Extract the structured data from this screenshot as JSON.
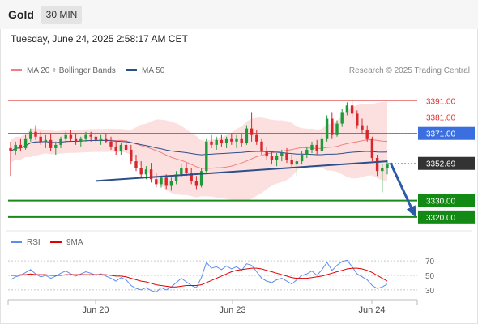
{
  "header": {
    "symbol": "Gold",
    "timeframe": "30 MIN",
    "timestamp": "Tuesday, June 24, 2025 2:58:17 AM CET"
  },
  "legend": {
    "ma20_label": "MA 20 + Bollinger Bands",
    "ma50_label": "MA 50",
    "ma20_color": "#f08080",
    "ma50_color": "#2c4f8a",
    "credit": "Research © 2025 Trading Central"
  },
  "indicator_legend": {
    "rsi_label": "RSI",
    "ma9_label": "9MA",
    "rsi_color": "#5b8def",
    "ma9_color": "#e00000"
  },
  "chart_data": [
    {
      "type": "candlestick",
      "title": "Gold 30 MIN",
      "ylim": [
        3313,
        3403
      ],
      "levels": [
        {
          "value": 3391.0,
          "label": "3391.00",
          "kind": "resistance",
          "color": "#e06060"
        },
        {
          "value": 3381.0,
          "label": "3381.00",
          "kind": "resistance",
          "color": "#e06060"
        },
        {
          "value": 3371.0,
          "label": "3371.00",
          "kind": "pivot",
          "color": "#3b6fe0"
        },
        {
          "value": 3352.69,
          "label": "3352.69",
          "kind": "last-price",
          "color": "#333333"
        },
        {
          "value": 3330.0,
          "label": "3330.00",
          "kind": "support",
          "color": "#1a8a1a"
        },
        {
          "value": 3320.0,
          "label": "3320.00",
          "kind": "support",
          "color": "#1a8a1a"
        }
      ],
      "x_labels": [
        "Jun 20",
        "Jun 23",
        "Jun 24"
      ],
      "trendline": {
        "from": 3342,
        "to": 3354
      },
      "projection": {
        "from": 3353,
        "to": 3321
      },
      "candles": [
        [
          3362,
          3366,
          3345,
          3360
        ],
        [
          3360,
          3366,
          3358,
          3364
        ],
        [
          3364,
          3368,
          3360,
          3362
        ],
        [
          3362,
          3370,
          3361,
          3368
        ],
        [
          3368,
          3374,
          3366,
          3372
        ],
        [
          3372,
          3376,
          3367,
          3369
        ],
        [
          3369,
          3372,
          3364,
          3366
        ],
        [
          3366,
          3370,
          3362,
          3367
        ],
        [
          3367,
          3371,
          3360,
          3362
        ],
        [
          3362,
          3366,
          3358,
          3364
        ],
        [
          3364,
          3369,
          3362,
          3368
        ],
        [
          3368,
          3372,
          3365,
          3370
        ],
        [
          3370,
          3373,
          3366,
          3368
        ],
        [
          3368,
          3371,
          3364,
          3366
        ],
        [
          3366,
          3369,
          3363,
          3368
        ],
        [
          3368,
          3372,
          3366,
          3370
        ],
        [
          3370,
          3372,
          3366,
          3369
        ],
        [
          3369,
          3371,
          3365,
          3367
        ],
        [
          3367,
          3370,
          3364,
          3368
        ],
        [
          3368,
          3371,
          3365,
          3366
        ],
        [
          3366,
          3369,
          3361,
          3363
        ],
        [
          3363,
          3366,
          3358,
          3360
        ],
        [
          3360,
          3365,
          3358,
          3364
        ],
        [
          3364,
          3367,
          3359,
          3361
        ],
        [
          3361,
          3364,
          3352,
          3354
        ],
        [
          3354,
          3358,
          3348,
          3350
        ],
        [
          3350,
          3354,
          3344,
          3346
        ],
        [
          3346,
          3351,
          3343,
          3349
        ],
        [
          3349,
          3353,
          3341,
          3343
        ],
        [
          3343,
          3347,
          3338,
          3340
        ],
        [
          3340,
          3345,
          3338,
          3344
        ],
        [
          3344,
          3346,
          3337,
          3339
        ],
        [
          3339,
          3344,
          3336,
          3342
        ],
        [
          3342,
          3348,
          3340,
          3346
        ],
        [
          3346,
          3352,
          3344,
          3350
        ],
        [
          3350,
          3353,
          3345,
          3347
        ],
        [
          3347,
          3350,
          3340,
          3342
        ],
        [
          3342,
          3345,
          3337,
          3339
        ],
        [
          3339,
          3350,
          3338,
          3348
        ],
        [
          3348,
          3368,
          3347,
          3366
        ],
        [
          3366,
          3370,
          3362,
          3364
        ],
        [
          3364,
          3369,
          3361,
          3367
        ],
        [
          3367,
          3370,
          3363,
          3365
        ],
        [
          3365,
          3369,
          3362,
          3368
        ],
        [
          3368,
          3371,
          3364,
          3366
        ],
        [
          3366,
          3370,
          3362,
          3368
        ],
        [
          3368,
          3371,
          3363,
          3365
        ],
        [
          3365,
          3376,
          3364,
          3374
        ],
        [
          3374,
          3384,
          3366,
          3370
        ],
        [
          3370,
          3373,
          3364,
          3366
        ],
        [
          3366,
          3368,
          3358,
          3360
        ],
        [
          3360,
          3363,
          3355,
          3357
        ],
        [
          3357,
          3360,
          3352,
          3355
        ],
        [
          3355,
          3359,
          3351,
          3357
        ],
        [
          3357,
          3361,
          3354,
          3359
        ],
        [
          3359,
          3362,
          3353,
          3355
        ],
        [
          3355,
          3358,
          3350,
          3352
        ],
        [
          3352,
          3356,
          3345,
          3354
        ],
        [
          3354,
          3360,
          3352,
          3358
        ],
        [
          3358,
          3363,
          3356,
          3361
        ],
        [
          3361,
          3366,
          3359,
          3364
        ],
        [
          3364,
          3367,
          3358,
          3360
        ],
        [
          3360,
          3370,
          3359,
          3368
        ],
        [
          3368,
          3382,
          3366,
          3380
        ],
        [
          3380,
          3384,
          3368,
          3370
        ],
        [
          3370,
          3379,
          3369,
          3377
        ],
        [
          3377,
          3386,
          3375,
          3384
        ],
        [
          3384,
          3390,
          3382,
          3388
        ],
        [
          3388,
          3392,
          3381,
          3383
        ],
        [
          3383,
          3385,
          3374,
          3376
        ],
        [
          3376,
          3380,
          3371,
          3373
        ],
        [
          3373,
          3376,
          3366,
          3368
        ],
        [
          3368,
          3369,
          3354,
          3356
        ],
        [
          3356,
          3358,
          3345,
          3348
        ],
        [
          3348,
          3352,
          3335,
          3350
        ],
        [
          3350,
          3355,
          3346,
          3352
        ]
      ]
    },
    {
      "type": "line",
      "title": "RSI / 9MA",
      "ylim": [
        22,
        78
      ],
      "y_ticks": [
        70,
        50,
        30
      ],
      "series": [
        {
          "name": "RSI",
          "values": [
            44,
            48,
            50,
            54,
            58,
            52,
            48,
            50,
            46,
            49,
            53,
            56,
            52,
            49,
            52,
            55,
            53,
            50,
            52,
            49,
            46,
            42,
            47,
            44,
            36,
            32,
            30,
            33,
            29,
            27,
            33,
            30,
            34,
            40,
            46,
            41,
            36,
            33,
            47,
            68,
            60,
            62,
            58,
            63,
            59,
            62,
            57,
            66,
            64,
            55,
            46,
            42,
            40,
            44,
            46,
            42,
            38,
            44,
            50,
            52,
            56,
            50,
            58,
            68,
            57,
            64,
            69,
            71,
            62,
            52,
            48,
            44,
            36,
            32,
            34,
            38
          ]
        },
        {
          "name": "9MA",
          "values": [
            50,
            50,
            51,
            51,
            52,
            51,
            51,
            51,
            50,
            50,
            50,
            51,
            51,
            51,
            51,
            51,
            51,
            51,
            51,
            51,
            50,
            49,
            49,
            48,
            46,
            44,
            42,
            41,
            39,
            37,
            36,
            35,
            34,
            34,
            35,
            36,
            36,
            36,
            37,
            40,
            43,
            46,
            49,
            52,
            55,
            57,
            58,
            59,
            60,
            60,
            59,
            57,
            55,
            53,
            51,
            49,
            47,
            46,
            46,
            46,
            47,
            48,
            49,
            51,
            53,
            55,
            57,
            59,
            60,
            60,
            59,
            57,
            54,
            50,
            46,
            42
          ]
        }
      ]
    }
  ]
}
